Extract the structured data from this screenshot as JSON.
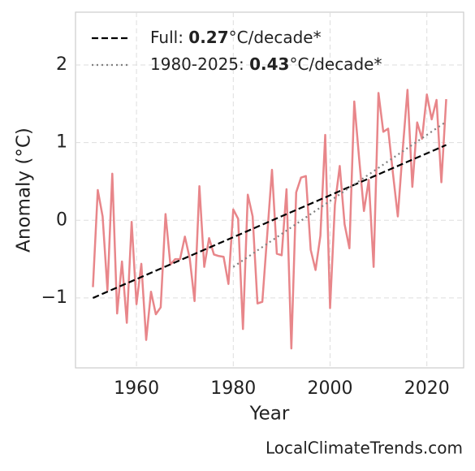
{
  "chart_data": {
    "type": "line",
    "xlabel": "Year",
    "ylabel": "Anomaly (°C)",
    "source": "LocalClimateTrends.com",
    "xlim": [
      1947.4,
      2027.6
    ],
    "ylim": [
      -1.9,
      2.68
    ],
    "xticks": [
      1960,
      1980,
      2000,
      2020
    ],
    "yticks": [
      {
        "value": -1,
        "label": "−1"
      },
      0,
      1,
      2
    ],
    "grid": true,
    "legend": "upper left",
    "series": [
      {
        "color": "#e8868a",
        "x": [
          1951,
          1952,
          1953,
          1954,
          1955,
          1956,
          1957,
          1958,
          1959,
          1960,
          1961,
          1962,
          1963,
          1964,
          1965,
          1966,
          1967,
          1968,
          1969,
          1970,
          1971,
          1972,
          1973,
          1974,
          1975,
          1976,
          1977,
          1978,
          1979,
          1980,
          1981,
          1982,
          1983,
          1984,
          1985,
          1986,
          1987,
          1988,
          1989,
          1990,
          1991,
          1992,
          1993,
          1994,
          1995,
          1996,
          1997,
          1998,
          1999,
          2000,
          2001,
          2002,
          2003,
          2004,
          2005,
          2006,
          2007,
          2008,
          2009,
          2010,
          2011,
          2012,
          2013,
          2014,
          2015,
          2016,
          2017,
          2018,
          2019,
          2020,
          2021,
          2022,
          2023,
          2024
        ],
        "values": [
          -0.86,
          0.39,
          0.05,
          -0.9,
          0.6,
          -1.2,
          -0.53,
          -1.32,
          -0.02,
          -1.08,
          -0.56,
          -1.54,
          -0.92,
          -1.21,
          -1.12,
          0.08,
          -0.57,
          -0.5,
          -0.5,
          -0.21,
          -0.49,
          -1.04,
          0.44,
          -0.6,
          -0.23,
          -0.44,
          -0.46,
          -0.47,
          -0.82,
          0.14,
          0.02,
          -1.4,
          0.33,
          0.05,
          -1.07,
          -1.05,
          -0.2,
          0.65,
          -0.43,
          -0.45,
          0.4,
          -1.65,
          0.36,
          0.55,
          0.57,
          -0.38,
          -0.64,
          -0.2,
          1.1,
          -1.13,
          0.2,
          0.7,
          -0.05,
          -0.36,
          1.53,
          0.8,
          0.12,
          0.52,
          -0.6,
          1.64,
          1.14,
          1.18,
          0.6,
          0.05,
          0.9,
          1.68,
          0.43,
          1.26,
          1.05,
          1.62,
          1.3,
          1.55,
          0.49,
          1.56
        ]
      },
      {
        "name": "Full:",
        "slope": 0.27,
        "slope_unit": "°C/decade*",
        "color": "#000000",
        "style": "dashed",
        "x": [
          1951,
          2024
        ],
        "values": [
          -1.0,
          0.97
        ]
      },
      {
        "name": "1980-2025:",
        "slope": 0.43,
        "slope_unit": "°C/decade*",
        "color": "#808080",
        "style": "dotted",
        "x": [
          1980,
          2024
        ],
        "values": [
          -0.6,
          1.27
        ]
      }
    ]
  }
}
